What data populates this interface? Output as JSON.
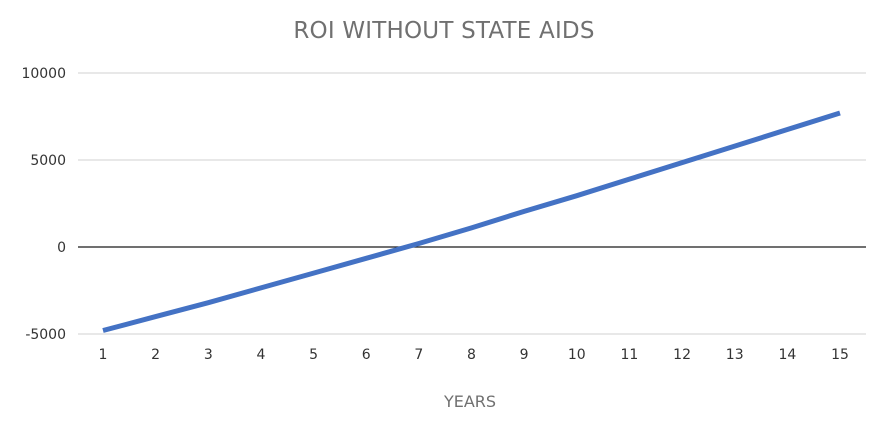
{
  "chart_data": {
    "type": "line",
    "title": "ROI WITHOUT STATE AIDS",
    "xlabel": "YEARS",
    "ylabel": "",
    "x": [
      1,
      2,
      3,
      4,
      5,
      6,
      7,
      8,
      9,
      10,
      11,
      12,
      13,
      14,
      15
    ],
    "series": [
      {
        "values": [
          -4800,
          -4000,
          -3200,
          -2350,
          -1500,
          -650,
          200,
          1100,
          2050,
          2950,
          3900,
          4850,
          5800,
          6750,
          7700
        ],
        "color": "#4472c4"
      }
    ],
    "yticks": [
      10000,
      5000,
      0,
      -5000
    ],
    "ylim": [
      -5000,
      10000
    ],
    "grid": true,
    "legend": "none"
  }
}
